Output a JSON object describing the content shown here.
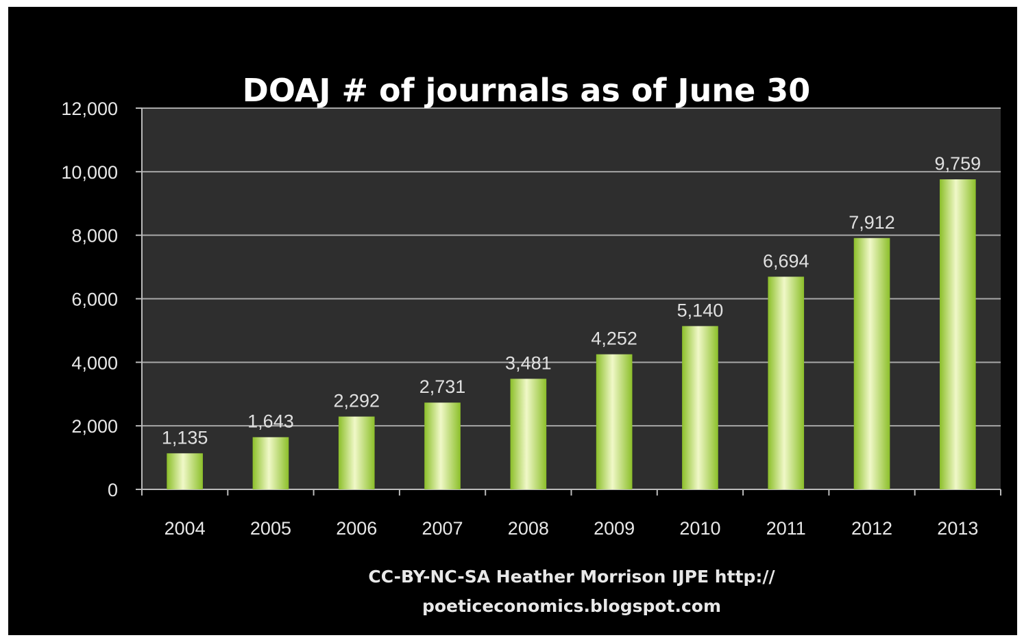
{
  "chart_data": {
    "type": "bar",
    "title": "DOAJ # of journals as of June 30",
    "xlabel_lines": [
      "CC-BY-NC-SA Heather Morrison IJPE http://",
      "poeticeconomics.blogspot.com"
    ],
    "ylabel": "",
    "categories": [
      "2004",
      "2005",
      "2006",
      "2007",
      "2008",
      "2009",
      "2010",
      "2011",
      "2012",
      "2013"
    ],
    "values": [
      1135,
      1643,
      2292,
      2731,
      3481,
      4252,
      5140,
      6694,
      7912,
      9759
    ],
    "data_labels": [
      "1,135",
      "1,643",
      "2,292",
      "2,731",
      "3,481",
      "4,252",
      "5,140",
      "6,694",
      "7,912",
      "9,759"
    ],
    "ylim": [
      0,
      12000
    ],
    "yticks": [
      0,
      2000,
      4000,
      6000,
      8000,
      10000,
      12000
    ],
    "ytick_labels": [
      "0",
      "2,000",
      "4,000",
      "6,000",
      "8,000",
      "10,000",
      "12,000"
    ],
    "grid": true,
    "legend": "none",
    "colors": {
      "page_background": "#000000",
      "plot_background": "#2e2e2e",
      "gridline": "#a8a8a8",
      "bar_light": "#f0f8c8",
      "bar_dark": "#8cbf2a",
      "text": "#ffffff"
    }
  }
}
